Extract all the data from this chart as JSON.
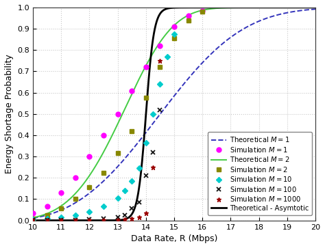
{
  "xlim": [
    10,
    20
  ],
  "ylim": [
    0,
    1.0
  ],
  "xlabel": "Data Rate, R (Mbps)",
  "ylabel": "Energy Shortage Probability",
  "xticks": [
    10,
    11,
    12,
    13,
    14,
    15,
    16,
    17,
    18,
    19,
    20
  ],
  "yticks": [
    0.0,
    0.1,
    0.2,
    0.3,
    0.4,
    0.5,
    0.6,
    0.7,
    0.8,
    0.9,
    1.0
  ],
  "grid_color": "#c8c8c8",
  "bg_color": "#ffffff",
  "theoretical_M1_color": "#3333bb",
  "theoretical_M2_color": "#44cc44",
  "sim_M1_color": "#ff00ff",
  "sim_M2_color": "#888800",
  "sim_M10_color": "#00cccc",
  "sim_M100_color": "#111111",
  "sim_M1000_color": "#990000",
  "asymptotic_color": "#000000",
  "legend_fontsize": 7.2,
  "tick_fontsize": 8,
  "label_fontsize": 9,
  "R_sim1": [
    10.0,
    10.5,
    11.0,
    11.5,
    12.0,
    12.5,
    13.0,
    13.5,
    14.0,
    14.5,
    15.0,
    15.5,
    16.0
  ],
  "y_sim1": [
    0.034,
    0.065,
    0.13,
    0.2,
    0.3,
    0.4,
    0.5,
    0.61,
    0.72,
    0.82,
    0.91,
    0.96,
    0.985
  ],
  "R_sim2": [
    10.0,
    10.5,
    11.0,
    11.5,
    12.0,
    12.5,
    13.0,
    13.5,
    14.0,
    14.5,
    15.0,
    15.5,
    16.0
  ],
  "y_sim2": [
    0.01,
    0.025,
    0.055,
    0.1,
    0.155,
    0.225,
    0.315,
    0.42,
    0.575,
    0.72,
    0.855,
    0.94,
    0.98
  ],
  "R_sim10": [
    10.0,
    10.5,
    11.0,
    11.5,
    12.0,
    12.5,
    13.0,
    13.25,
    13.5,
    13.75,
    14.0,
    14.25,
    14.5,
    14.75,
    15.0
  ],
  "y_sim10": [
    0.005,
    0.008,
    0.015,
    0.025,
    0.04,
    0.065,
    0.105,
    0.14,
    0.185,
    0.245,
    0.365,
    0.5,
    0.64,
    0.77,
    0.875
  ],
  "R_sim100": [
    10.0,
    10.5,
    11.0,
    11.5,
    12.0,
    12.5,
    13.0,
    13.25,
    13.5,
    13.75,
    14.0,
    14.25,
    14.5
  ],
  "y_sim100": [
    0.001,
    0.001,
    0.001,
    0.002,
    0.004,
    0.008,
    0.015,
    0.025,
    0.055,
    0.085,
    0.21,
    0.32,
    0.52
  ],
  "R_sim1000": [
    10.0,
    10.5,
    11.0,
    11.5,
    12.0,
    12.5,
    13.0,
    13.25,
    13.5,
    13.75,
    14.0,
    14.25,
    14.5
  ],
  "y_sim1000": [
    0.001,
    0.001,
    0.001,
    0.001,
    0.001,
    0.002,
    0.003,
    0.005,
    0.008,
    0.015,
    0.035,
    0.25,
    0.75
  ]
}
